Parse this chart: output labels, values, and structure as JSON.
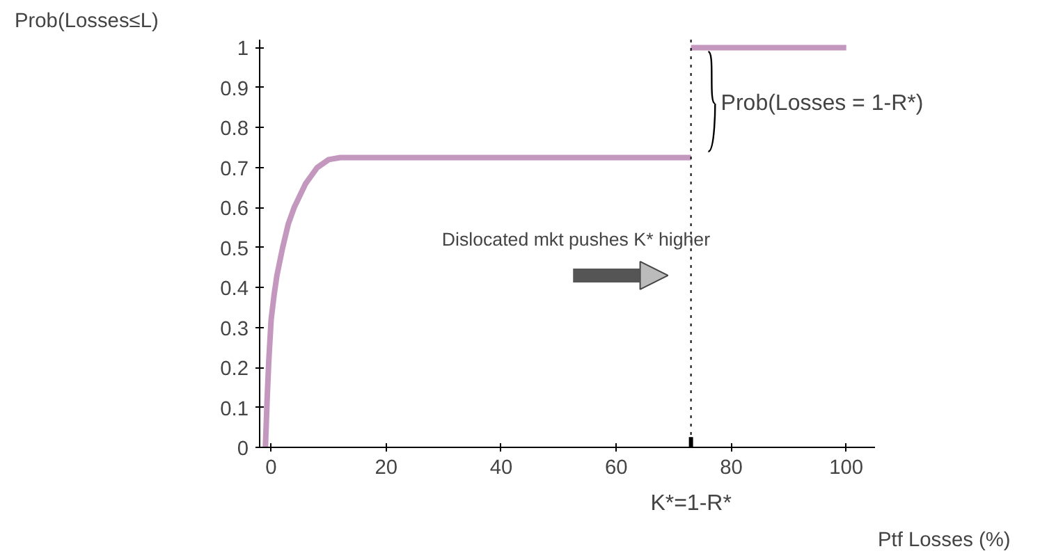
{
  "chart_data": {
    "type": "line",
    "ylabel": "Prob(Losses≤L)",
    "xlabel": "Ptf Losses (%)",
    "xlim": [
      -2,
      105
    ],
    "ylim": [
      0,
      1.02
    ],
    "xticks": [
      0,
      20,
      40,
      60,
      80,
      100
    ],
    "yticks": [
      0,
      0.1,
      0.2,
      0.3,
      0.4,
      0.5,
      0.6,
      0.7,
      0.8,
      0.9,
      1
    ],
    "series": [
      {
        "color": "#c497bf",
        "x": [
          -1,
          -0.7,
          -0.4,
          0,
          0.5,
          1,
          2,
          3,
          4,
          6,
          8,
          10,
          12,
          14,
          73
        ],
        "values": [
          0,
          0.12,
          0.22,
          0.32,
          0.38,
          0.43,
          0.5,
          0.56,
          0.6,
          0.66,
          0.7,
          0.72,
          0.725,
          0.725,
          0.725
        ]
      },
      {
        "color": "#c497bf",
        "x": [
          73,
          100
        ],
        "values": [
          1,
          1
        ]
      }
    ],
    "ref_lines": [
      {
        "axis": "x",
        "value": 73,
        "color": "#000000",
        "line_style": "dotted"
      }
    ],
    "annotations": [
      "Dislocated mkt pushes K* higher",
      {
        "text": "Prob(Losses = 1-R*)",
        "x": 73,
        "y": 0.86
      },
      "K*=1-R*"
    ],
    "line_style": "solid"
  }
}
